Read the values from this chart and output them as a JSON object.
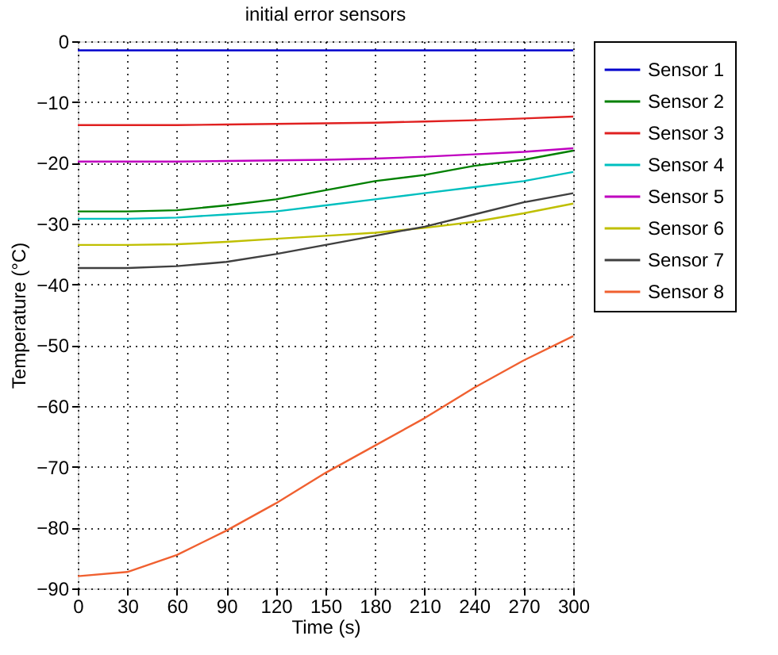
{
  "chart_data": {
    "type": "line",
    "title": "initial error sensors",
    "xlabel": "Time (s)",
    "ylabel": "Temperature (°C)",
    "x": [
      0,
      30,
      60,
      90,
      120,
      150,
      180,
      210,
      240,
      270,
      300
    ],
    "xlim": [
      0,
      300
    ],
    "xticks": [
      0,
      30,
      60,
      90,
      120,
      150,
      180,
      210,
      240,
      270,
      300
    ],
    "ylim": [
      -90,
      0
    ],
    "yticks": [
      -90,
      -80,
      -70,
      -60,
      -50,
      -40,
      -30,
      -20,
      -10,
      0
    ],
    "grid": true,
    "legend": "right",
    "marker": "none",
    "line_style": "solid",
    "series": [
      {
        "name": "Sensor 1",
        "color": "#0000cc",
        "values": [
          -1.5,
          -1.5,
          -1.5,
          -1.5,
          -1.5,
          -1.5,
          -1.5,
          -1.5,
          -1.5,
          -1.5,
          -1.5
        ]
      },
      {
        "name": "Sensor 2",
        "color": "#008000",
        "values": [
          -28,
          -28,
          -27.8,
          -27,
          -26,
          -24.5,
          -23,
          -22,
          -20.5,
          -19.5,
          -18
        ]
      },
      {
        "name": "Sensor 3",
        "color": "#e02020",
        "values": [
          -13.8,
          -13.8,
          -13.8,
          -13.7,
          -13.6,
          -13.5,
          -13.4,
          -13.2,
          -13,
          -12.7,
          -12.4
        ]
      },
      {
        "name": "Sensor 4",
        "color": "#00bfbf",
        "values": [
          -29.2,
          -29.2,
          -29,
          -28.5,
          -28,
          -27,
          -26,
          -25,
          -24,
          -23,
          -21.5
        ]
      },
      {
        "name": "Sensor 5",
        "color": "#bf00bf",
        "values": [
          -19.8,
          -19.8,
          -19.8,
          -19.7,
          -19.6,
          -19.5,
          -19.3,
          -19,
          -18.6,
          -18.2,
          -17.6
        ]
      },
      {
        "name": "Sensor 6",
        "color": "#bfbf00",
        "values": [
          -33.5,
          -33.5,
          -33.4,
          -33,
          -32.5,
          -32,
          -31.5,
          -30.7,
          -29.7,
          -28.3,
          -26.7
        ]
      },
      {
        "name": "Sensor 7",
        "color": "#404040",
        "values": [
          -37.3,
          -37.3,
          -37,
          -36.3,
          -35,
          -33.5,
          -32,
          -30.5,
          -28.5,
          -26.5,
          -25
        ]
      },
      {
        "name": "Sensor 8",
        "color": "#f06030",
        "values": [
          -88,
          -87.3,
          -84.5,
          -80.5,
          -76,
          -71,
          -66.5,
          -62,
          -57,
          -52.5,
          -48.5
        ]
      }
    ]
  }
}
